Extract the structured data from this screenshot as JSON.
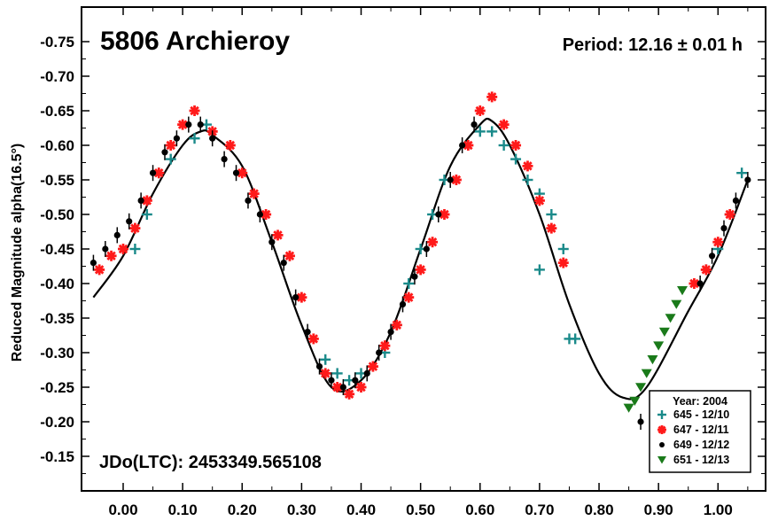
{
  "chart_data": {
    "type": "scatter",
    "title": "5806 Archieroy",
    "annotations": {
      "period": "Period: 12.16 ± 0.01 h",
      "jdo": "JDo(LTC): 2453349.565108"
    },
    "xlabel": "",
    "ylabel": "Reduced Magnitude alpha(16.5°)",
    "xlim": [
      -0.07,
      1.08
    ],
    "ylim": [
      -0.1,
      -0.8
    ],
    "y_inverted": true,
    "xticks": [
      0.0,
      0.1,
      0.2,
      0.3,
      0.4,
      0.5,
      0.6,
      0.7,
      0.8,
      0.9,
      1.0
    ],
    "xtick_labels": [
      "0.00",
      "0.10",
      "0.20",
      "0.30",
      "0.40",
      "0.50",
      "0.60",
      "0.70",
      "0.80",
      "0.90",
      "1.00"
    ],
    "yticks": [
      -0.15,
      -0.2,
      -0.25,
      -0.3,
      -0.35,
      -0.4,
      -0.45,
      -0.5,
      -0.55,
      -0.6,
      -0.65,
      -0.7,
      -0.75
    ],
    "ytick_labels": [
      "-0.15",
      "-0.20",
      "-0.25",
      "-0.30",
      "-0.35",
      "-0.40",
      "-0.45",
      "-0.50",
      "-0.55",
      "-0.60",
      "-0.65",
      "-0.70",
      "-0.75"
    ],
    "legend": {
      "title": "Year: 2004",
      "placement": "bottom-right"
    },
    "colors": {
      "645": "#1a8a8a",
      "647": "#ff1a1a",
      "649": "#000000",
      "651": "#1a7a1a",
      "curve": "#000000"
    },
    "fit_curve": {
      "x": [
        -0.05,
        0.0,
        0.05,
        0.1,
        0.13,
        0.15,
        0.2,
        0.25,
        0.3,
        0.35,
        0.4,
        0.45,
        0.5,
        0.55,
        0.6,
        0.62,
        0.65,
        0.7,
        0.75,
        0.8,
        0.84,
        0.88,
        0.95,
        1.0,
        1.05
      ],
      "y": [
        -0.38,
        -0.44,
        -0.53,
        -0.6,
        -0.62,
        -0.615,
        -0.57,
        -0.46,
        -0.34,
        -0.25,
        -0.26,
        -0.33,
        -0.45,
        -0.57,
        -0.63,
        -0.635,
        -0.6,
        -0.5,
        -0.37,
        -0.27,
        -0.235,
        -0.25,
        -0.36,
        -0.44,
        -0.55
      ]
    },
    "series": [
      {
        "name": "645 - 12/10",
        "marker": "plus",
        "x": [
          0.02,
          0.04,
          0.06,
          0.08,
          0.12,
          0.14,
          0.34,
          0.36,
          0.38,
          0.4,
          0.44,
          0.46,
          0.48,
          0.5,
          0.52,
          0.54,
          0.6,
          0.62,
          0.64,
          0.66,
          0.68,
          0.7,
          0.72,
          0.74,
          0.7,
          0.75,
          0.76,
          0.98,
          1.0,
          1.02,
          1.04
        ],
        "y": [
          -0.45,
          -0.5,
          -0.56,
          -0.58,
          -0.61,
          -0.63,
          -0.29,
          -0.27,
          -0.26,
          -0.27,
          -0.3,
          -0.34,
          -0.4,
          -0.45,
          -0.5,
          -0.55,
          -0.62,
          -0.62,
          -0.6,
          -0.58,
          -0.55,
          -0.53,
          -0.5,
          -0.45,
          -0.42,
          -0.32,
          -0.32,
          -0.42,
          -0.45,
          -0.5,
          -0.56
        ]
      },
      {
        "name": "647 - 12/11",
        "marker": "asterisk",
        "x": [
          -0.04,
          -0.02,
          0.0,
          0.02,
          0.04,
          0.06,
          0.08,
          0.1,
          0.12,
          0.15,
          0.18,
          0.2,
          0.22,
          0.24,
          0.26,
          0.28,
          0.3,
          0.32,
          0.34,
          0.36,
          0.38,
          0.4,
          0.42,
          0.44,
          0.46,
          0.48,
          0.5,
          0.52,
          0.54,
          0.56,
          0.58,
          0.6,
          0.62,
          0.64,
          0.66,
          0.68,
          0.7,
          0.72,
          0.74,
          0.96,
          0.98,
          1.0,
          1.02
        ],
        "y": [
          -0.42,
          -0.44,
          -0.45,
          -0.48,
          -0.52,
          -0.56,
          -0.6,
          -0.63,
          -0.65,
          -0.62,
          -0.6,
          -0.56,
          -0.53,
          -0.5,
          -0.47,
          -0.44,
          -0.38,
          -0.32,
          -0.27,
          -0.25,
          -0.24,
          -0.25,
          -0.28,
          -0.31,
          -0.34,
          -0.38,
          -0.42,
          -0.46,
          -0.5,
          -0.55,
          -0.6,
          -0.65,
          -0.67,
          -0.63,
          -0.6,
          -0.57,
          -0.52,
          -0.48,
          -0.43,
          -0.4,
          -0.42,
          -0.46,
          -0.5
        ]
      },
      {
        "name": "649 - 12/12",
        "marker": "circle",
        "x": [
          -0.05,
          -0.03,
          -0.01,
          0.01,
          0.03,
          0.05,
          0.07,
          0.09,
          0.11,
          0.13,
          0.15,
          0.17,
          0.19,
          0.21,
          0.23,
          0.25,
          0.27,
          0.29,
          0.31,
          0.33,
          0.35,
          0.37,
          0.39,
          0.41,
          0.43,
          0.45,
          0.47,
          0.49,
          0.51,
          0.53,
          0.55,
          0.57,
          0.59,
          0.87,
          0.97,
          0.99,
          1.01,
          1.03,
          1.05
        ],
        "y": [
          -0.43,
          -0.45,
          -0.47,
          -0.49,
          -0.52,
          -0.56,
          -0.59,
          -0.61,
          -0.63,
          -0.63,
          -0.61,
          -0.58,
          -0.56,
          -0.52,
          -0.5,
          -0.46,
          -0.43,
          -0.38,
          -0.33,
          -0.28,
          -0.26,
          -0.25,
          -0.26,
          -0.27,
          -0.3,
          -0.33,
          -0.37,
          -0.41,
          -0.45,
          -0.5,
          -0.55,
          -0.6,
          -0.63,
          -0.2,
          -0.4,
          -0.44,
          -0.48,
          -0.52,
          -0.55
        ]
      },
      {
        "name": "651 - 12/13",
        "marker": "triangle-down",
        "x": [
          0.85,
          0.86,
          0.87,
          0.88,
          0.89,
          0.9,
          0.91,
          0.92,
          0.93,
          0.94
        ],
        "y": [
          -0.22,
          -0.23,
          -0.25,
          -0.27,
          -0.29,
          -0.31,
          -0.33,
          -0.35,
          -0.37,
          -0.39
        ]
      }
    ]
  }
}
